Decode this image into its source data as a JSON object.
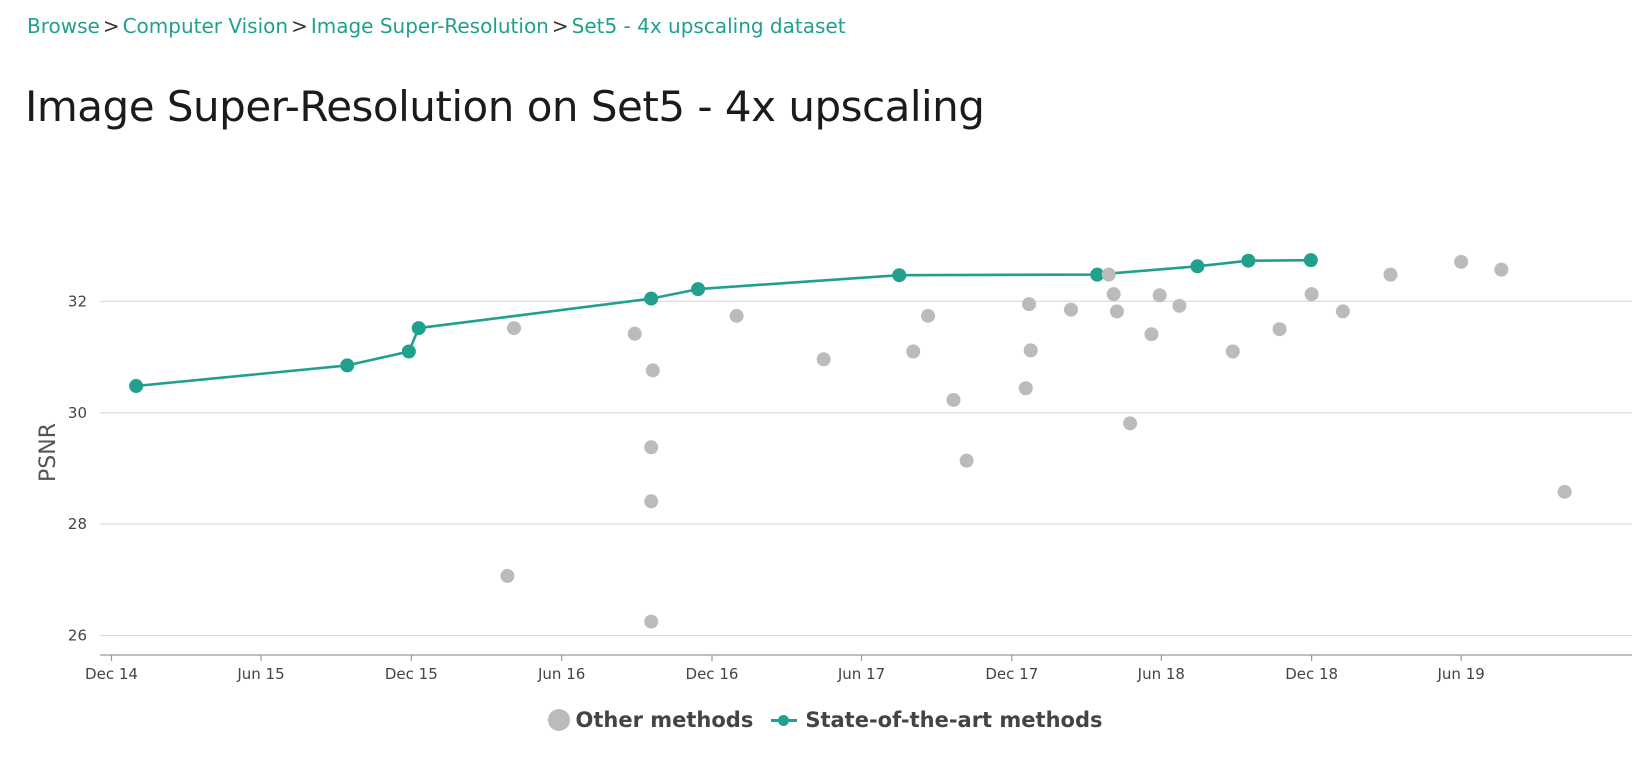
{
  "breadcrumb": {
    "items": [
      "Browse",
      "Computer Vision",
      "Image Super-Resolution",
      "Set5 - 4x upscaling dataset"
    ],
    "separator": ">"
  },
  "page_title": "Image Super-Resolution on Set5 - 4x upscaling",
  "colors": {
    "sota": "#21a08e",
    "other": "#bbbbbb",
    "grid": "#dddddd",
    "axis": "#999999",
    "link": "#21a08e"
  },
  "legend": {
    "other_label": "Other methods",
    "sota_label": "State-of-the-art methods"
  },
  "chart_data": {
    "type": "scatter",
    "xlabel": "",
    "ylabel": "PSNR",
    "x_ticks": [
      "2014-12-01",
      "2015-06-01",
      "2015-12-01",
      "2016-06-01",
      "2016-12-01",
      "2017-06-01",
      "2017-12-01",
      "2018-06-01",
      "2018-12-01",
      "2019-06-01"
    ],
    "x_tick_labels": [
      "Dec 14",
      "Jun 15",
      "Dec 15",
      "Jun 16",
      "Dec 16",
      "Jun 17",
      "Dec 17",
      "Jun 18",
      "Dec 18",
      "Jun 19"
    ],
    "xlim": [
      "2014-11-17",
      "2019-12-26"
    ],
    "y_ticks": [
      26,
      28,
      30,
      32
    ],
    "ylim": [
      25.65,
      34.0
    ],
    "grid": true,
    "legend_position": "bottom-center",
    "series": [
      {
        "name": "Other methods",
        "kind": "points",
        "points": [
          {
            "x": "2016-03-27",
            "y": 27.07
          },
          {
            "x": "2016-04-04",
            "y": 31.52
          },
          {
            "x": "2016-08-29",
            "y": 31.42
          },
          {
            "x": "2016-09-18",
            "y": 29.38
          },
          {
            "x": "2016-09-18",
            "y": 28.41
          },
          {
            "x": "2016-09-18",
            "y": 26.25
          },
          {
            "x": "2016-09-20",
            "y": 30.76
          },
          {
            "x": "2016-12-31",
            "y": 31.74
          },
          {
            "x": "2017-04-16",
            "y": 30.96
          },
          {
            "x": "2017-08-03",
            "y": 31.1
          },
          {
            "x": "2017-08-21",
            "y": 31.74
          },
          {
            "x": "2017-09-21",
            "y": 30.23
          },
          {
            "x": "2017-10-07",
            "y": 29.14
          },
          {
            "x": "2017-12-18",
            "y": 30.44
          },
          {
            "x": "2017-12-22",
            "y": 31.95
          },
          {
            "x": "2017-12-24",
            "y": 31.12
          },
          {
            "x": "2018-02-11",
            "y": 31.85
          },
          {
            "x": "2018-03-29",
            "y": 32.48
          },
          {
            "x": "2018-04-04",
            "y": 32.13
          },
          {
            "x": "2018-04-08",
            "y": 31.82
          },
          {
            "x": "2018-04-24",
            "y": 29.81
          },
          {
            "x": "2018-05-20",
            "y": 31.41
          },
          {
            "x": "2018-05-30",
            "y": 32.11
          },
          {
            "x": "2018-06-23",
            "y": 31.92
          },
          {
            "x": "2018-08-27",
            "y": 31.1
          },
          {
            "x": "2018-10-23",
            "y": 31.5
          },
          {
            "x": "2018-12-01",
            "y": 32.13
          },
          {
            "x": "2019-01-08",
            "y": 31.82
          },
          {
            "x": "2019-03-07",
            "y": 32.48
          },
          {
            "x": "2019-06-01",
            "y": 32.71
          },
          {
            "x": "2019-07-20",
            "y": 32.57
          },
          {
            "x": "2019-10-05",
            "y": 28.58
          }
        ]
      },
      {
        "name": "State-of-the-art methods",
        "kind": "line",
        "points": [
          {
            "x": "2014-12-31",
            "y": 30.48
          },
          {
            "x": "2015-09-14",
            "y": 30.85
          },
          {
            "x": "2015-11-28",
            "y": 31.1
          },
          {
            "x": "2015-12-10",
            "y": 31.52
          },
          {
            "x": "2016-09-18",
            "y": 32.05
          },
          {
            "x": "2016-11-14",
            "y": 32.22
          },
          {
            "x": "2017-07-17",
            "y": 32.47
          },
          {
            "x": "2018-03-15",
            "y": 32.48
          },
          {
            "x": "2018-07-15",
            "y": 32.63
          },
          {
            "x": "2018-09-15",
            "y": 32.73
          },
          {
            "x": "2018-11-30",
            "y": 32.74
          }
        ]
      }
    ]
  }
}
